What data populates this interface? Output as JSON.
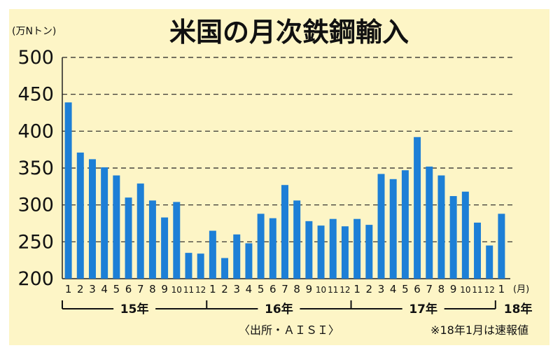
{
  "chart_data": {
    "type": "bar",
    "title": "米国の月次鉄鋼輸入",
    "unit_label": "(万Nトン)",
    "ylim": [
      200,
      500
    ],
    "yticks": [
      200,
      250,
      300,
      350,
      400,
      450,
      500
    ],
    "grid": true,
    "bar_color": "#1d7fd6",
    "categories": [
      "1",
      "2",
      "3",
      "4",
      "5",
      "6",
      "7",
      "8",
      "9",
      "10",
      "11",
      "12",
      "1",
      "2",
      "3",
      "4",
      "5",
      "6",
      "7",
      "8",
      "9",
      "10",
      "11",
      "12",
      "1",
      "2",
      "3",
      "4",
      "5",
      "6",
      "7",
      "8",
      "9",
      "10",
      "11",
      "12",
      "1"
    ],
    "x_unit": "(月)",
    "values": [
      439,
      371,
      362,
      351,
      340,
      310,
      329,
      306,
      283,
      304,
      235,
      234,
      265,
      228,
      260,
      248,
      288,
      282,
      327,
      306,
      278,
      272,
      281,
      271,
      281,
      273,
      342,
      335,
      347,
      392,
      352,
      340,
      312,
      318,
      276,
      245,
      288
    ],
    "year_groups": [
      {
        "label": "15年",
        "start": 0,
        "end": 11
      },
      {
        "label": "16年",
        "start": 12,
        "end": 23
      },
      {
        "label": "17年",
        "start": 24,
        "end": 35
      },
      {
        "label": "18年",
        "start": 36,
        "end": 36
      }
    ],
    "source": "〈出所・ＡＩＳＩ〉",
    "note": "※18年1月は速報値"
  }
}
